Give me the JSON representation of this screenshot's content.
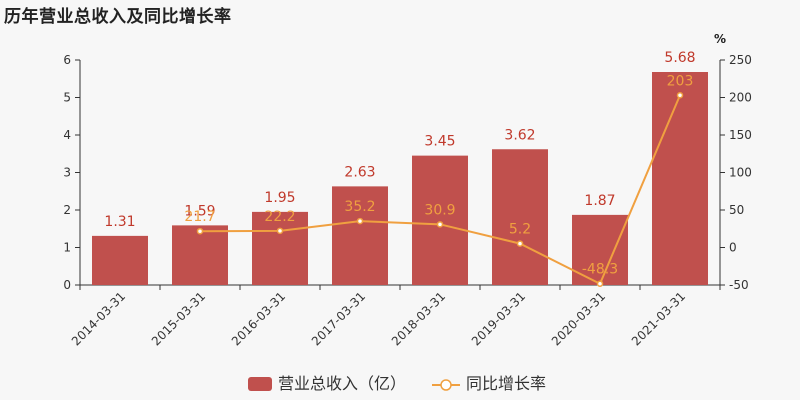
{
  "chart_data": {
    "type": "bar",
    "title": "历年营业总收入及同比增长率",
    "categories": [
      "2014-03-31",
      "2015-03-31",
      "2016-03-31",
      "2017-03-31",
      "2018-03-31",
      "2019-03-31",
      "2020-03-31",
      "2021-03-31"
    ],
    "series": [
      {
        "name": "营业总收入（亿）",
        "type": "bar",
        "axis": "left",
        "values": [
          1.31,
          1.59,
          1.95,
          2.63,
          3.45,
          3.62,
          1.87,
          5.68
        ],
        "labels": [
          "1.31",
          "1.59",
          "1.95",
          "2.63",
          "3.45",
          "3.62",
          "1.87",
          "5.68"
        ],
        "color": "#c0504d"
      },
      {
        "name": "同比增长率",
        "type": "line",
        "axis": "right",
        "values": [
          null,
          21.7,
          22.2,
          35.2,
          30.9,
          5.2,
          -48.3,
          203
        ],
        "labels": [
          "",
          "21.7",
          "22.2",
          "35.2",
          "30.9",
          "5.2",
          "-48.3",
          "203"
        ],
        "color": "#f0a040"
      }
    ],
    "y_left": {
      "min": 0,
      "max": 6,
      "ticks": [
        0,
        1,
        2,
        3,
        4,
        5,
        6
      ]
    },
    "y_right": {
      "min": -50,
      "max": 250,
      "ticks": [
        -50,
        0,
        50,
        100,
        150,
        200,
        250
      ],
      "unit": "%"
    },
    "legend": {
      "position": "bottom-center",
      "items": [
        "营业总收入（亿）",
        "同比增长率"
      ]
    },
    "grid": false
  }
}
